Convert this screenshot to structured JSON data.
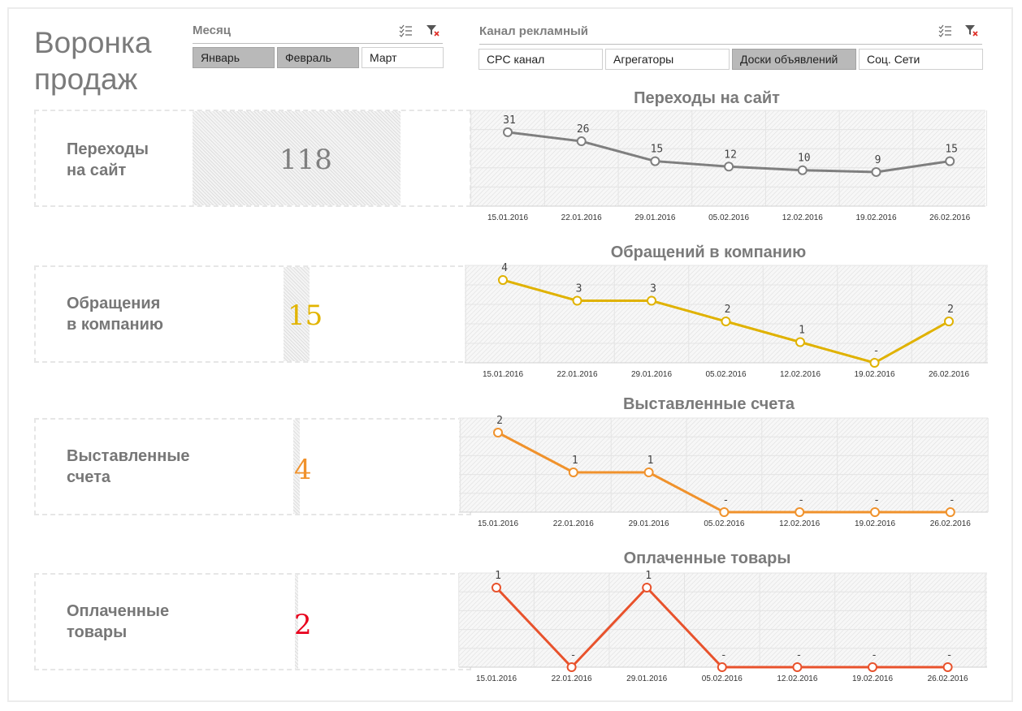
{
  "page_title": [
    "Воронка",
    "продаж"
  ],
  "slicers": {
    "month": {
      "header": "Месяц",
      "items": [
        {
          "label": "Январь",
          "selected": true
        },
        {
          "label": "Февраль",
          "selected": true
        },
        {
          "label": "Март",
          "selected": false
        }
      ]
    },
    "channel": {
      "header": "Канал рекламный",
      "items": [
        {
          "label": "CPC канал",
          "selected": false
        },
        {
          "label": "Агрегаторы",
          "selected": false
        },
        {
          "label": "Доски объявлений",
          "selected": true
        },
        {
          "label": "Соц. Сети",
          "selected": false
        }
      ]
    }
  },
  "kpis": [
    {
      "label": [
        "Переходы",
        "на сайт"
      ],
      "value": "118",
      "color": "#7f7f7f"
    },
    {
      "label": [
        "Обращения",
        "в компанию"
      ],
      "value": "15",
      "color": "#e2b400"
    },
    {
      "label": [
        "Выставленные",
        "счета"
      ],
      "value": "4",
      "color": "#f0922c"
    },
    {
      "label": [
        "Оплаченные",
        "товары"
      ],
      "value": "2",
      "color": "#e8001c"
    }
  ],
  "chart_data": [
    {
      "type": "line",
      "title": "Переходы на сайт",
      "x": [
        "15.01.2016",
        "22.01.2016",
        "29.01.2016",
        "05.02.2016",
        "12.02.2016",
        "19.02.2016",
        "26.02.2016"
      ],
      "values": [
        31,
        26,
        15,
        12,
        10,
        9,
        15
      ],
      "data_labels": [
        "31",
        "26",
        "15",
        "12",
        "10",
        "9",
        "15"
      ],
      "color": "#7f7f7f",
      "grid": true
    },
    {
      "type": "line",
      "title": "Обращений в компанию",
      "x": [
        "15.01.2016",
        "22.01.2016",
        "29.01.2016",
        "05.02.2016",
        "12.02.2016",
        "19.02.2016",
        "26.02.2016"
      ],
      "values": [
        4,
        3,
        3,
        2,
        1,
        0,
        2
      ],
      "data_labels": [
        "4",
        "3",
        "3",
        "2",
        "1",
        "-",
        "2"
      ],
      "color": "#e0b200",
      "grid": true
    },
    {
      "type": "line",
      "title": "Выставленные счета",
      "x": [
        "15.01.2016",
        "22.01.2016",
        "29.01.2016",
        "05.02.2016",
        "12.02.2016",
        "19.02.2016",
        "26.02.2016"
      ],
      "values": [
        2,
        1,
        1,
        0,
        0,
        0,
        0
      ],
      "data_labels": [
        "2",
        "1",
        "1",
        "-",
        "-",
        "-",
        "-"
      ],
      "color": "#f0922c",
      "grid": true
    },
    {
      "type": "line",
      "title": "Оплаченные товары",
      "x": [
        "15.01.2016",
        "22.01.2016",
        "29.01.2016",
        "05.02.2016",
        "12.02.2016",
        "19.02.2016",
        "26.02.2016"
      ],
      "values": [
        1,
        0,
        1,
        0,
        0,
        0,
        0
      ],
      "data_labels": [
        "1",
        "-",
        "1",
        "-",
        "-",
        "-",
        "-"
      ],
      "color": "#e8522c",
      "grid": true
    }
  ]
}
